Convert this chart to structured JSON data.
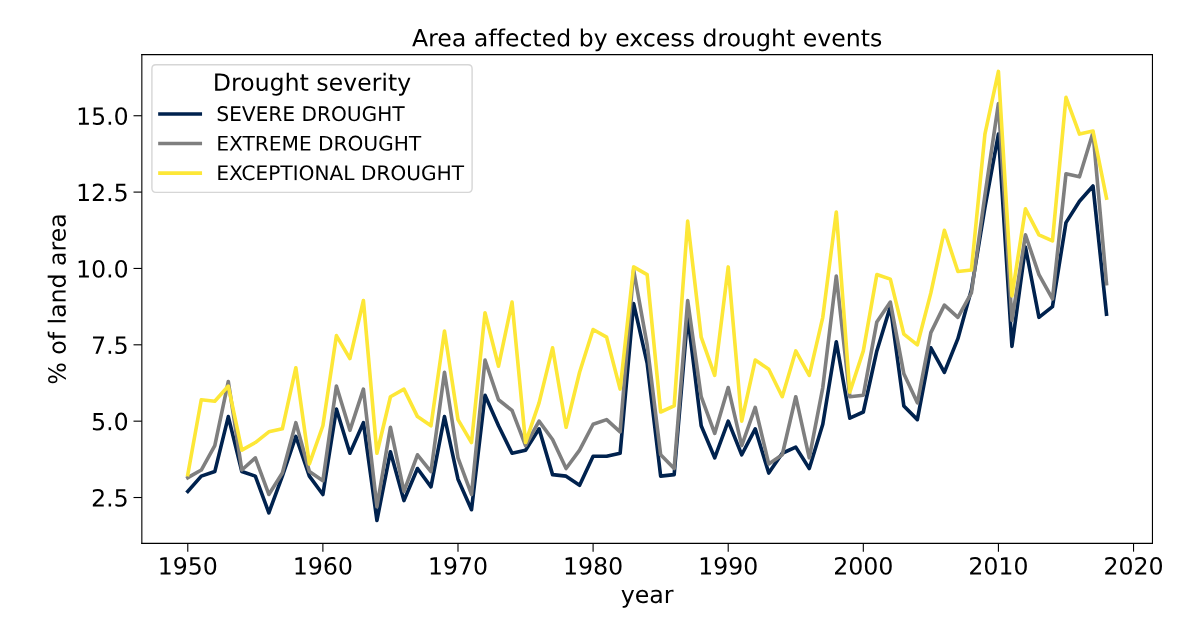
{
  "chart_data": {
    "type": "line",
    "title": "Area affected by excess drought events",
    "xlabel": "year",
    "ylabel": "% of land area",
    "legend_title": "Drought severity",
    "legend": "top left",
    "grid": false,
    "x": [
      1950,
      1951,
      1952,
      1953,
      1954,
      1955,
      1956,
      1957,
      1958,
      1959,
      1960,
      1961,
      1962,
      1963,
      1964,
      1965,
      1966,
      1967,
      1968,
      1969,
      1970,
      1971,
      1972,
      1973,
      1974,
      1975,
      1976,
      1977,
      1978,
      1979,
      1980,
      1981,
      1982,
      1983,
      1984,
      1985,
      1986,
      1987,
      1988,
      1989,
      1990,
      1991,
      1992,
      1993,
      1994,
      1995,
      1996,
      1997,
      1998,
      1999,
      2000,
      2001,
      2002,
      2003,
      2004,
      2005,
      2006,
      2007,
      2008,
      2009,
      2010,
      2011,
      2012,
      2013,
      2014,
      2015,
      2016,
      2017,
      2018
    ],
    "xlim": [
      1946.6,
      2021.4
    ],
    "xticks": [
      1950,
      1960,
      1970,
      1980,
      1990,
      2000,
      2010,
      2020
    ],
    "ylim": [
      1.0,
      17.0
    ],
    "yticks": [
      {
        "value": 2.5,
        "label": "2.5"
      },
      {
        "value": 5,
        "label": "5.0"
      },
      {
        "value": 7.5,
        "label": "7.5"
      },
      {
        "value": 10,
        "label": "10.0"
      },
      {
        "value": 12.5,
        "label": "12.5"
      },
      {
        "value": 15,
        "label": "15.0"
      }
    ],
    "series": [
      {
        "name": "SEVERE DROUGHT",
        "color": "#00224e",
        "values": [
          2.7,
          3.2,
          3.35,
          5.15,
          3.35,
          3.2,
          2.0,
          3.2,
          4.5,
          3.2,
          2.6,
          5.4,
          3.95,
          4.95,
          1.75,
          4.0,
          2.4,
          3.45,
          2.85,
          5.15,
          3.1,
          2.1,
          5.85,
          4.85,
          3.95,
          4.05,
          4.75,
          3.25,
          3.2,
          2.9,
          3.85,
          3.85,
          3.95,
          8.85,
          6.9,
          3.2,
          3.25,
          8.45,
          4.85,
          3.8,
          5.0,
          3.9,
          4.75,
          3.3,
          3.95,
          4.15,
          3.45,
          4.9,
          7.6,
          5.1,
          5.3,
          7.3,
          8.75,
          5.5,
          5.05,
          7.4,
          6.6,
          7.7,
          9.3,
          12.0,
          14.4,
          7.45,
          10.7,
          8.4,
          8.75,
          11.5,
          12.2,
          12.7,
          8.5
        ]
      },
      {
        "name": "EXTREME DROUGHT",
        "color": "#7f7f7f",
        "values": [
          3.15,
          3.4,
          4.2,
          6.3,
          3.4,
          3.8,
          2.6,
          3.3,
          4.95,
          3.35,
          3.05,
          6.15,
          4.7,
          6.05,
          2.2,
          4.8,
          2.7,
          3.9,
          3.35,
          6.6,
          3.8,
          2.6,
          7.0,
          5.7,
          5.35,
          4.2,
          5.0,
          4.4,
          3.45,
          4.05,
          4.9,
          5.05,
          4.65,
          9.95,
          7.5,
          3.9,
          3.45,
          8.95,
          5.8,
          4.6,
          6.1,
          4.2,
          5.45,
          3.6,
          3.9,
          5.8,
          3.8,
          6.1,
          9.75,
          5.8,
          5.85,
          8.25,
          8.9,
          6.55,
          5.6,
          7.9,
          8.8,
          8.4,
          9.2,
          12.4,
          15.4,
          8.3,
          11.1,
          9.8,
          9.0,
          13.1,
          13.0,
          14.45,
          9.5
        ]
      },
      {
        "name": "EXCEPTIONAL DROUGHT",
        "color": "#fde737",
        "values": [
          3.25,
          5.7,
          5.65,
          6.15,
          4.05,
          4.3,
          4.65,
          4.75,
          6.75,
          3.6,
          4.85,
          7.8,
          7.05,
          8.95,
          3.95,
          5.8,
          6.05,
          5.15,
          4.85,
          7.95,
          5.05,
          4.3,
          8.55,
          6.8,
          8.9,
          4.3,
          5.6,
          7.4,
          4.8,
          6.6,
          8.0,
          7.75,
          6.05,
          10.05,
          9.8,
          5.3,
          5.5,
          11.55,
          7.75,
          6.5,
          10.05,
          5.0,
          7.0,
          6.7,
          5.8,
          7.3,
          6.5,
          8.4,
          11.85,
          5.95,
          7.3,
          9.8,
          9.65,
          7.85,
          7.5,
          9.2,
          11.25,
          9.9,
          9.95,
          14.4,
          16.45,
          9.1,
          11.95,
          11.1,
          10.9,
          15.6,
          14.4,
          14.5,
          12.3
        ]
      }
    ]
  }
}
